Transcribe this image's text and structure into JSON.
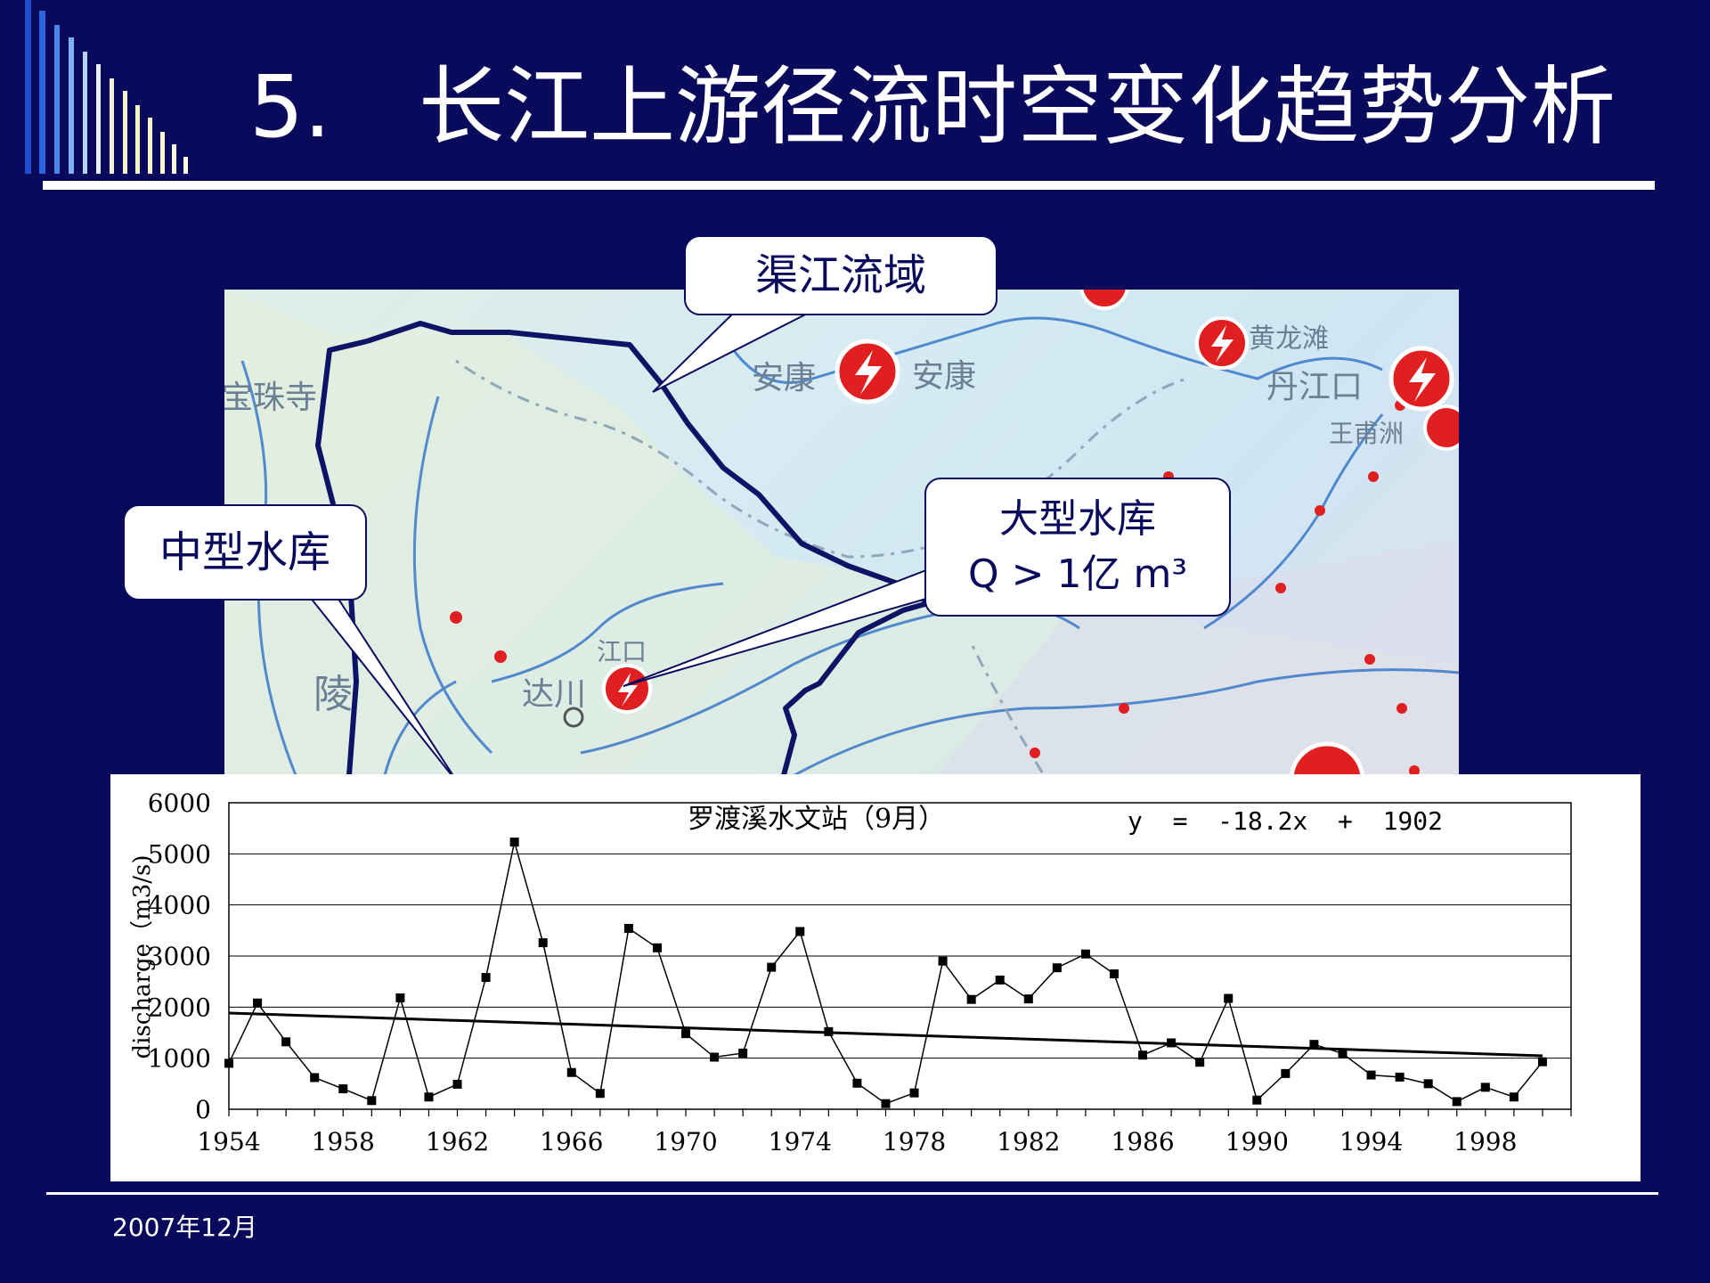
{
  "slide": {
    "title_number": "5.",
    "title_text": "长江上游径流时空变化趋势分析",
    "footer_date": "2007年12月"
  },
  "map": {
    "labels": {
      "baozhusi": "宝珠寺",
      "ankang_left": "安康",
      "ankang_right": "安康",
      "huanglongtan": "黄龙滩",
      "danjiangkou": "丹江口",
      "wangfuzhou": "王甫洲",
      "jiangkou": "江口",
      "dachuan": "达川",
      "ling": "陵"
    }
  },
  "callouts": {
    "qujiang": {
      "text": "渠江流域"
    },
    "medium": {
      "text": "中型水库"
    },
    "large": {
      "line1": "大型水库",
      "line2": "Q > 1亿 m³"
    }
  },
  "colors": {
    "background": "#0a0a5c",
    "basin_outline": "#0d1466",
    "reservoir_red": "#e02020",
    "river_blue": "#3a78c8"
  },
  "chart_data": {
    "type": "line",
    "title": "罗渡溪水文站（9月）",
    "trend_equation": "y  =  -18.2x  +  1902",
    "ylabel": "discharge（m3/s)",
    "xlabel": "",
    "ylim": [
      0,
      6000
    ],
    "yticks": [
      0,
      1000,
      2000,
      3000,
      4000,
      5000,
      6000
    ],
    "xlim": [
      1954,
      2001
    ],
    "xticks": [
      1954,
      1958,
      1962,
      1966,
      1970,
      1974,
      1978,
      1982,
      1986,
      1990,
      1994,
      1998
    ],
    "grid": "horizontal",
    "x": [
      1954,
      1955,
      1956,
      1957,
      1958,
      1959,
      1960,
      1961,
      1962,
      1963,
      1964,
      1965,
      1966,
      1967,
      1968,
      1969,
      1970,
      1971,
      1972,
      1973,
      1974,
      1975,
      1976,
      1977,
      1978,
      1979,
      1980,
      1981,
      1982,
      1983,
      1984,
      1985,
      1986,
      1987,
      1988,
      1989,
      1990,
      1991,
      1992,
      1993,
      1994,
      1995,
      1996,
      1997,
      1998,
      1999,
      2000
    ],
    "series": [
      {
        "values": [
          900,
          2080,
          1320,
          620,
          400,
          170,
          2180,
          240,
          490,
          2580,
          5230,
          3260,
          720,
          310,
          3540,
          3160,
          1480,
          1020,
          1100,
          2780,
          3480,
          1520,
          510,
          110,
          320,
          2900,
          2150,
          2530,
          2160,
          2770,
          3040,
          2650,
          1060,
          1300,
          920,
          2170,
          180,
          700,
          1270,
          1090,
          670,
          630,
          500,
          150,
          430,
          240,
          930
        ]
      }
    ],
    "trend": {
      "slope": -18.2,
      "intercept": 1902
    }
  }
}
